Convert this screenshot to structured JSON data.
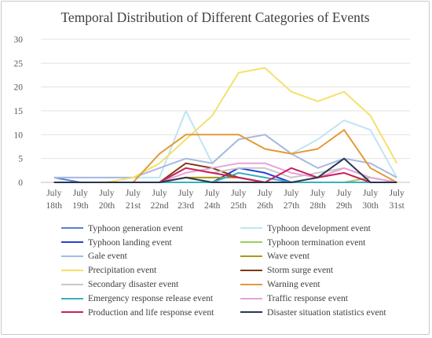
{
  "chart_data": {
    "type": "line",
    "title": "Temporal Distribution  of Different  Categories of Events",
    "xlabel": "",
    "ylabel": "",
    "ylim": [
      0,
      30
    ],
    "yticks": [
      0,
      5,
      10,
      15,
      20,
      25,
      30
    ],
    "grid": "horizontal",
    "legend_position": "bottom",
    "categories": [
      [
        "July",
        "18th"
      ],
      [
        "July",
        "19th"
      ],
      [
        "July",
        "20th"
      ],
      [
        "July",
        "21st"
      ],
      [
        "July",
        "22nd"
      ],
      [
        "July",
        "23rd"
      ],
      [
        "July",
        "24th"
      ],
      [
        "July",
        "25th"
      ],
      [
        "July",
        "26th"
      ],
      [
        "July",
        "27th"
      ],
      [
        "July",
        "28th"
      ],
      [
        "July",
        "29th"
      ],
      [
        "July",
        "30th"
      ],
      [
        "July",
        "31st"
      ]
    ],
    "series": [
      {
        "name": "Typhoon generation event",
        "color": "#5b7fd0",
        "values": [
          1,
          0,
          0,
          0,
          0,
          0,
          0,
          0,
          0,
          0,
          0,
          0,
          0,
          0
        ]
      },
      {
        "name": "Typhoon development event",
        "color": "#bfe4f3",
        "values": [
          1,
          1,
          1,
          1,
          1,
          15,
          4,
          9,
          10,
          6,
          9,
          13,
          11,
          1
        ]
      },
      {
        "name": "Typhoon landing event",
        "color": "#2a3fd6",
        "values": [
          0,
          0,
          0,
          0,
          0,
          0,
          0,
          3,
          2,
          0,
          0,
          0,
          0,
          0
        ]
      },
      {
        "name": "Typhoon termination event",
        "color": "#98d05c",
        "values": [
          0,
          0,
          0,
          0,
          0,
          0,
          0,
          0,
          0,
          0,
          0,
          0,
          1,
          0
        ]
      },
      {
        "name": "Gale event",
        "color": "#a7b9e2",
        "values": [
          1,
          1,
          1,
          1,
          3,
          5,
          4,
          9,
          10,
          6,
          3,
          5,
          4,
          1
        ]
      },
      {
        "name": "Wave event",
        "color": "#a89a12",
        "values": [
          0,
          0,
          0,
          0,
          0,
          1,
          1,
          1,
          0,
          0,
          0,
          0,
          0,
          0
        ]
      },
      {
        "name": "Precipitation event",
        "color": "#f5e06a",
        "values": [
          0,
          0,
          0,
          1,
          4,
          9,
          14,
          23,
          24,
          19,
          17,
          19,
          14,
          4
        ]
      },
      {
        "name": "Storm surge event",
        "color": "#7a3a10",
        "values": [
          0,
          0,
          0,
          0,
          0,
          4,
          3,
          1,
          0,
          0,
          0,
          0,
          0,
          0
        ]
      },
      {
        "name": "Secondary disaster event",
        "color": "#c8c8c8",
        "values": [
          0,
          0,
          0,
          0,
          0,
          3,
          2,
          3,
          3,
          1,
          2,
          3,
          1,
          0
        ]
      },
      {
        "name": "Warning event",
        "color": "#e49a35",
        "values": [
          0,
          0,
          0,
          0,
          6,
          10,
          10,
          10,
          7,
          6,
          7,
          11,
          3,
          0
        ]
      },
      {
        "name": "Emergency response release event",
        "color": "#3ab0c0",
        "values": [
          0,
          0,
          0,
          0,
          0,
          0,
          0,
          2,
          1,
          0,
          0,
          0,
          0,
          0
        ]
      },
      {
        "name": "Traffic response event",
        "color": "#e8a2dc",
        "values": [
          0,
          0,
          0,
          0,
          0,
          2,
          3,
          4,
          4,
          2,
          1,
          3,
          1,
          0
        ]
      },
      {
        "name": "Production and life response event",
        "color": "#c9205a",
        "values": [
          0,
          0,
          0,
          0,
          0,
          3,
          2,
          1,
          0,
          3,
          1,
          2,
          0,
          0
        ]
      },
      {
        "name": "Disaster situation statistics event",
        "color": "#2a3550",
        "values": [
          0,
          0,
          0,
          0,
          0,
          1,
          0,
          0,
          0,
          0,
          1,
          5,
          0,
          0
        ]
      }
    ]
  }
}
